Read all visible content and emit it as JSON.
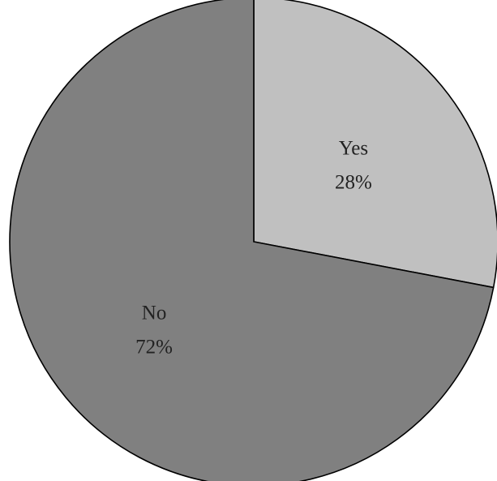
{
  "chart_data": {
    "type": "pie",
    "title": "",
    "start_angle_deg": 0,
    "direction": "clockwise",
    "slices": [
      {
        "label": "Yes",
        "value": 28,
        "display_value": "28%",
        "color": "#c0c0c0"
      },
      {
        "label": "No",
        "value": 72,
        "display_value": "72%",
        "color": "#808080"
      }
    ],
    "legend": "none"
  }
}
